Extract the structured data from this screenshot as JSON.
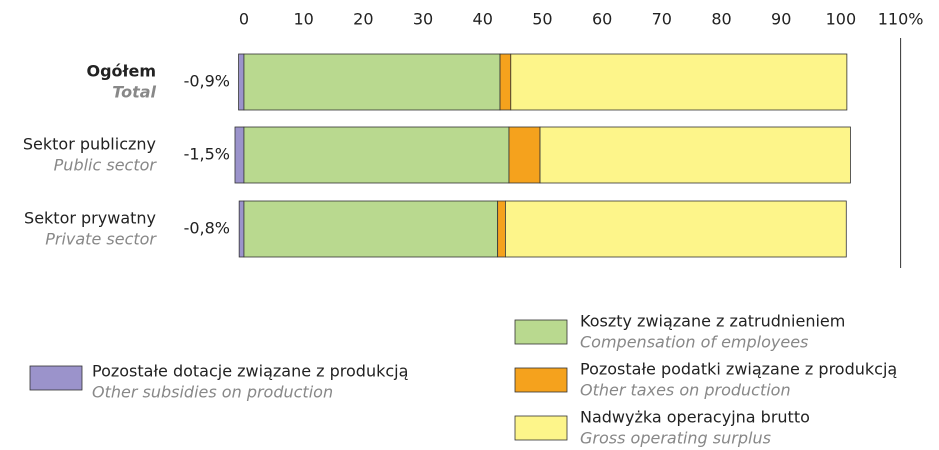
{
  "chart_data": {
    "type": "stacked-bar-horizontal",
    "categories": [
      "Ogółem",
      "Sektor publiczny",
      "Sektor prywatny"
    ],
    "categories_en": [
      "Total",
      "Public sector",
      "Private sector"
    ],
    "series": [
      {
        "name": "Pozostałe dotacje związane z produkcją",
        "name_en": "Other subsidies on production",
        "color": "#9b93cb",
        "values": [
          -0.9,
          -1.5,
          -0.8
        ],
        "value_labels": [
          "-0,9%",
          "-1,5%",
          "-0,8%"
        ]
      },
      {
        "name": "Koszty związane z zatrudnieniem",
        "name_en": "Compensation of employees",
        "color": "#b9d98f",
        "values": [
          42.9,
          44.4,
          42.5
        ]
      },
      {
        "name": "Pozostałe podatki związane z produkcją",
        "name_en": "Other taxes on production",
        "color": "#f5a21d",
        "values": [
          1.8,
          5.2,
          1.3
        ]
      },
      {
        "name": "Nadwyżka operacyjna brutto",
        "name_en": "Gross operating surplus",
        "color": "#fdf58a",
        "values": [
          56.3,
          52.0,
          57.1
        ]
      }
    ],
    "xlim": [
      -2,
      110
    ],
    "xticks": [
      0,
      10,
      20,
      30,
      40,
      50,
      60,
      70,
      80,
      90,
      100,
      {
        "value": 110,
        "label": "110%"
      }
    ]
  }
}
